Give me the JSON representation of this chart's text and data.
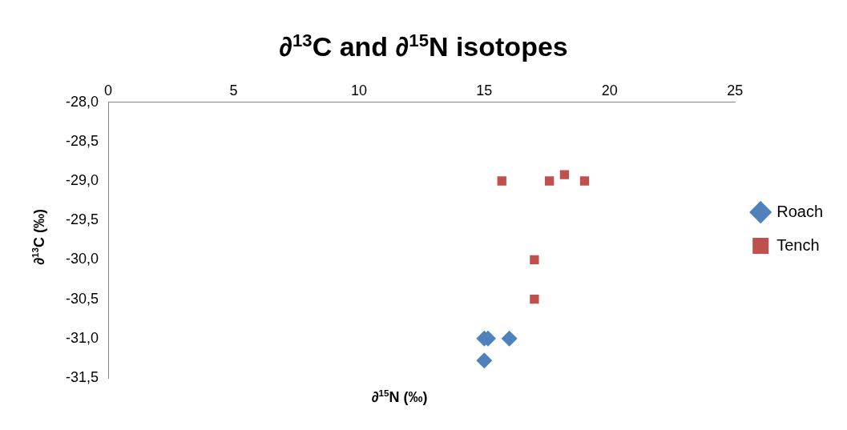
{
  "chart_data": {
    "type": "scatter",
    "title": "∂$^{13}$C and ∂$^{15}$N isotopes",
    "xlabel": "∂$^{15}$N (‰)",
    "ylabel": "∂$^{13}$C (‰)",
    "xlim": [
      0,
      25
    ],
    "xticks": [
      0,
      5,
      10,
      15,
      20,
      25
    ],
    "ylim": [
      -31.5,
      -28
    ],
    "yticks": [
      {
        "value": -31.5,
        "label": "-31,5"
      },
      {
        "value": -31,
        "label": "-31,0"
      },
      {
        "value": -30.5,
        "label": "-30,5"
      },
      {
        "value": -30,
        "label": "-30,0"
      },
      {
        "value": -29.5,
        "label": "-29,5"
      },
      {
        "value": -29,
        "label": "-29,0"
      },
      {
        "value": -28.5,
        "label": "-28,5"
      },
      {
        "value": -28,
        "label": "-28,0"
      }
    ],
    "grid": false,
    "legend": "right",
    "series": [
      {
        "name": "Roach",
        "color": "#4f81bd",
        "marker": "diamond",
        "x": [
          15.0,
          15.15,
          16.0,
          15.0
        ],
        "values": [
          -31.0,
          -31.0,
          -31.0,
          -31.28
        ]
      },
      {
        "name": "Tench",
        "color": "#c0504d",
        "marker": "square",
        "x": [
          15.7,
          17.6,
          18.2,
          19.0,
          17.0,
          17.0
        ],
        "values": [
          -29.0,
          -29.0,
          -28.92,
          -29.0,
          -30.0,
          -30.5
        ]
      }
    ]
  }
}
